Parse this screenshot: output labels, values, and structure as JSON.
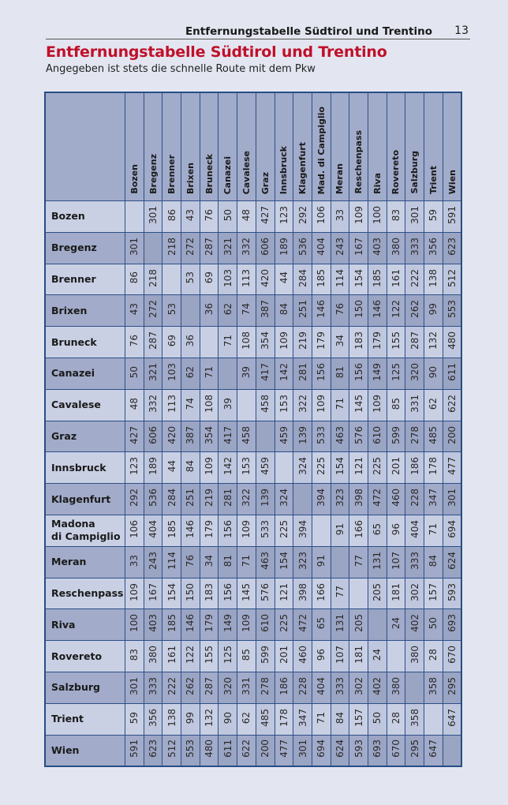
{
  "running_header": {
    "title": "Entfernungstabelle Südtirol und Trentino",
    "page_number": "13"
  },
  "title": "Entfernungstabelle Südtirol und Trentino",
  "subtitle": "Angegeben ist stets die schnelle Route mit dem Pkw",
  "colors": {
    "title": "#c0102a",
    "border": "#274d85",
    "header_bg": "#a1abca",
    "row_light": "#c9d0e4",
    "row_dark": "#a2abc9"
  },
  "table": {
    "columns": [
      "Bozen",
      "Bregenz",
      "Brenner",
      "Brixen",
      "Bruneck",
      "Canazei",
      "Cavalese",
      "Graz",
      "Innsbruck",
      "Klagenfurt",
      "Mad. di Campiglio",
      "Meran",
      "Reschenpass",
      "Riva",
      "Rovereto",
      "Salzburg",
      "Trient",
      "Wien"
    ],
    "rows": [
      {
        "label": "Bozen",
        "values": [
          "",
          "301",
          "86",
          "43",
          "76",
          "50",
          "48",
          "427",
          "123",
          "292",
          "106",
          "33",
          "109",
          "100",
          "83",
          "301",
          "59",
          "591"
        ]
      },
      {
        "label": "Bregenz",
        "values": [
          "301",
          "",
          "218",
          "272",
          "287",
          "321",
          "332",
          "606",
          "189",
          "536",
          "404",
          "243",
          "167",
          "403",
          "380",
          "333",
          "356",
          "623"
        ]
      },
      {
        "label": "Brenner",
        "values": [
          "86",
          "218",
          "",
          "53",
          "69",
          "103",
          "113",
          "420",
          "44",
          "284",
          "185",
          "114",
          "154",
          "185",
          "161",
          "222",
          "138",
          "512"
        ]
      },
      {
        "label": "Brixen",
        "values": [
          "43",
          "272",
          "53",
          "",
          "36",
          "62",
          "74",
          "387",
          "84",
          "251",
          "146",
          "76",
          "150",
          "146",
          "122",
          "262",
          "99",
          "553"
        ]
      },
      {
        "label": "Bruneck",
        "values": [
          "76",
          "287",
          "69",
          "36",
          "",
          "71",
          "108",
          "354",
          "109",
          "219",
          "179",
          "34",
          "183",
          "179",
          "155",
          "287",
          "132",
          "480"
        ]
      },
      {
        "label": "Canazei",
        "values": [
          "50",
          "321",
          "103",
          "62",
          "71",
          "",
          "39",
          "417",
          "142",
          "281",
          "156",
          "81",
          "156",
          "149",
          "125",
          "320",
          "90",
          "611"
        ]
      },
      {
        "label": "Cavalese",
        "values": [
          "48",
          "332",
          "113",
          "74",
          "108",
          "39",
          "",
          "458",
          "153",
          "322",
          "109",
          "71",
          "145",
          "109",
          "85",
          "331",
          "62",
          "622"
        ]
      },
      {
        "label": "Graz",
        "values": [
          "427",
          "606",
          "420",
          "387",
          "354",
          "417",
          "458",
          "",
          "459",
          "139",
          "533",
          "463",
          "576",
          "610",
          "599",
          "278",
          "485",
          "200"
        ]
      },
      {
        "label": "Innsbruck",
        "values": [
          "123",
          "189",
          "44",
          "84",
          "109",
          "142",
          "153",
          "459",
          "",
          "324",
          "225",
          "154",
          "121",
          "225",
          "201",
          "186",
          "178",
          "477"
        ]
      },
      {
        "label": "Klagenfurt",
        "values": [
          "292",
          "536",
          "284",
          "251",
          "219",
          "281",
          "322",
          "139",
          "324",
          "",
          "394",
          "323",
          "398",
          "472",
          "460",
          "228",
          "347",
          "301"
        ]
      },
      {
        "label": "Madona di Campiglio",
        "values": [
          "106",
          "404",
          "185",
          "146",
          "179",
          "156",
          "109",
          "533",
          "225",
          "394",
          "",
          "91",
          "166",
          "65",
          "96",
          "404",
          "71",
          "694"
        ]
      },
      {
        "label": "Meran",
        "values": [
          "33",
          "243",
          "114",
          "76",
          "34",
          "81",
          "71",
          "463",
          "154",
          "323",
          "91",
          "",
          "77",
          "131",
          "107",
          "333",
          "84",
          "624"
        ]
      },
      {
        "label": "Reschenpass",
        "values": [
          "109",
          "167",
          "154",
          "150",
          "183",
          "156",
          "145",
          "576",
          "121",
          "398",
          "166",
          "77",
          "",
          "205",
          "181",
          "302",
          "157",
          "593"
        ]
      },
      {
        "label": "Riva",
        "values": [
          "100",
          "403",
          "185",
          "146",
          "179",
          "149",
          "109",
          "610",
          "225",
          "472",
          "65",
          "131",
          "205",
          "",
          "24",
          "402",
          "50",
          "693"
        ]
      },
      {
        "label": "Rovereto",
        "values": [
          "83",
          "380",
          "161",
          "122",
          "155",
          "125",
          "85",
          "599",
          "201",
          "460",
          "96",
          "107",
          "181",
          "24",
          "",
          "380",
          "28",
          "670"
        ]
      },
      {
        "label": "Salzburg",
        "values": [
          "301",
          "333",
          "222",
          "262",
          "287",
          "320",
          "331",
          "278",
          "186",
          "228",
          "404",
          "333",
          "302",
          "402",
          "380",
          "",
          "358",
          "295"
        ]
      },
      {
        "label": "Trient",
        "values": [
          "59",
          "356",
          "138",
          "99",
          "132",
          "90",
          "62",
          "485",
          "178",
          "347",
          "71",
          "84",
          "157",
          "50",
          "28",
          "358",
          "",
          "647"
        ]
      },
      {
        "label": "Wien",
        "values": [
          "591",
          "623",
          "512",
          "553",
          "480",
          "611",
          "622",
          "200",
          "477",
          "301",
          "694",
          "624",
          "593",
          "693",
          "670",
          "295",
          "647",
          ""
        ]
      }
    ]
  }
}
